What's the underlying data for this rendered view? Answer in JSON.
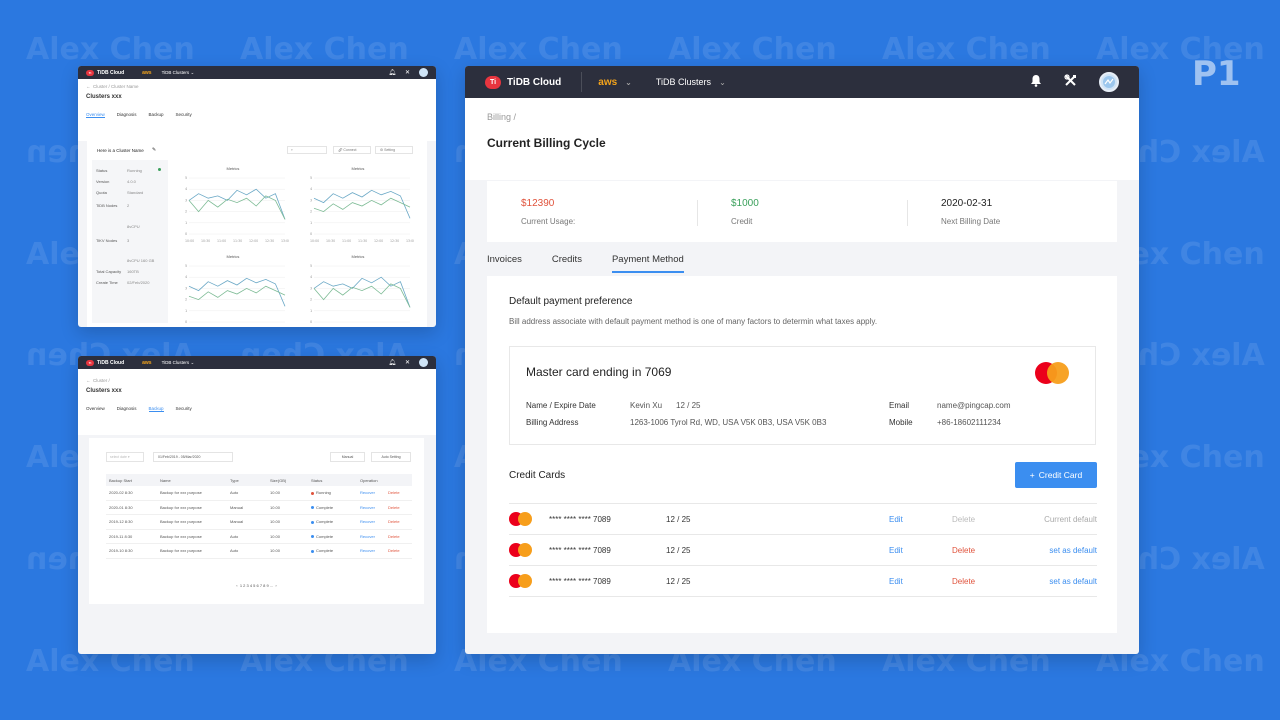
{
  "watermark": "Alex Chen",
  "page_marker": "P1",
  "main": {
    "brand": "TiDB Cloud",
    "brand_mark": "Ti",
    "cloud_provider": "aws",
    "cluster_menu": "TiDB Clusters",
    "breadcrumb": "Billing  /",
    "title": "Current Billing Cycle",
    "summary": [
      {
        "value": "$12390",
        "label": "Current Usage:",
        "color": "#e0533c"
      },
      {
        "value": "$1000",
        "label": "Credit",
        "color": "#3aa05b"
      },
      {
        "value": "2020-02-31",
        "label": "Next Billing Date",
        "color": "#222222"
      }
    ],
    "tabs": [
      "Invoices",
      "Credits",
      "Payment Method"
    ],
    "active_tab": "Payment Method",
    "pref_title": "Default payment preference",
    "pref_desc": "Bill address associate with default payment method is one of many factors to determin what taxes apply.",
    "card": {
      "title": "Master card ending in 7069",
      "name_label": "Name / Expire Date",
      "name_value": "Kevin Xu",
      "expire_value": "12 / 25",
      "address_label": "Billing Address",
      "address_value": "1263-1006 Tyrol Rd, WD, USA V5K 0B3, USA V5K 0B3",
      "email_label": "Email",
      "email_value": "name@pingcap.com",
      "mobile_label": "Mobile",
      "mobile_value": "+86-18602111234"
    },
    "credit_cards_title": "Credit Cards",
    "add_button": "Credit Card",
    "credit_cards": [
      {
        "number": "**** **** **** 7089",
        "expire": "12 / 25",
        "edit": "Edit",
        "delete": "Delete",
        "default": "Current default",
        "is_default": true
      },
      {
        "number": "**** **** **** 7089",
        "expire": "12 / 25",
        "edit": "Edit",
        "delete": "Delete",
        "default": "set as default",
        "is_default": false
      },
      {
        "number": "**** **** **** 7089",
        "expire": "12 / 25",
        "edit": "Edit",
        "delete": "Delete",
        "default": "set as default",
        "is_default": false
      }
    ]
  },
  "overview_window": {
    "brand": "TiDB Cloud",
    "cloud_provider": "aws",
    "cluster_menu": "TiDB Clusters",
    "breadcrumb": "Cluster  /  Cluster Name",
    "title": "Clusters xxx",
    "tabs": [
      "Overview",
      "Diagnosis",
      "Backup",
      "Security"
    ],
    "active_tab": "Overview",
    "cluster_name": "Here is a Cluster Name",
    "connect": "Connect",
    "setting": "Setting",
    "status_rows": [
      {
        "label": "Status",
        "value": "Running"
      },
      {
        "label": "Version",
        "value": "4.0.0"
      },
      {
        "label": "Quota",
        "value": "Standard"
      },
      {
        "label": "TiDB Nodes",
        "value": "2"
      },
      {
        "label": "",
        "value": "8vCPU"
      },
      {
        "label": "TiKV Nodes",
        "value": "3"
      },
      {
        "label": "",
        "value": "8vCPU  160 GB"
      },
      {
        "label": "Total Capacity",
        "value": "160TB"
      },
      {
        "label": "Create Time",
        "value": "02/Feb/2020"
      }
    ],
    "chart_title": "Metrics",
    "x_ticks": [
      "10:00",
      "10:30",
      "11:00",
      "11:30",
      "12:00",
      "12:30",
      "13:00"
    ],
    "y_ticks": [
      "0",
      "1",
      "2",
      "3",
      "4",
      "5"
    ]
  },
  "backup_window": {
    "brand": "TiDB Cloud",
    "cloud_provider": "aws",
    "cluster_menu": "TiDB Clusters",
    "breadcrumb": "Cluster /",
    "title": "Clusters xxx",
    "tabs": [
      "Overview",
      "Diagnosis",
      "Backup",
      "Security"
    ],
    "active_tab": "Backup",
    "select_placeholder": "select date",
    "date_range": "01/Feb/2019  -  05/Mar/2020",
    "manual_btn": "Manual",
    "auto_btn": "Auto Setting",
    "columns": [
      "Backup Start",
      "Name",
      "Type",
      "Size(GB)",
      "Status",
      "Operation"
    ],
    "rows": [
      [
        "2020-02 8:30",
        "Backup for xxx purpose",
        "Auto",
        "10.00",
        "Running",
        "Recover",
        "Delete"
      ],
      [
        "2020-01 8:30",
        "Backup for xxx purpose",
        "Manual",
        "10.00",
        "Complete",
        "Recover",
        "Delete"
      ],
      [
        "2019-12 8:30",
        "Backup for xxx purpose",
        "Manual",
        "10.00",
        "Complete",
        "Recover",
        "Delete"
      ],
      [
        "2019-11 8:30",
        "Backup for xxx purpose",
        "Auto",
        "10.00",
        "Complete",
        "Recover",
        "Delete"
      ],
      [
        "2019-10 8:30",
        "Backup for xxx purpose",
        "Auto",
        "10.00",
        "Complete",
        "Recover",
        "Delete"
      ]
    ],
    "pagination": "1 2 3 4 5 6 7 8 9 ..."
  }
}
